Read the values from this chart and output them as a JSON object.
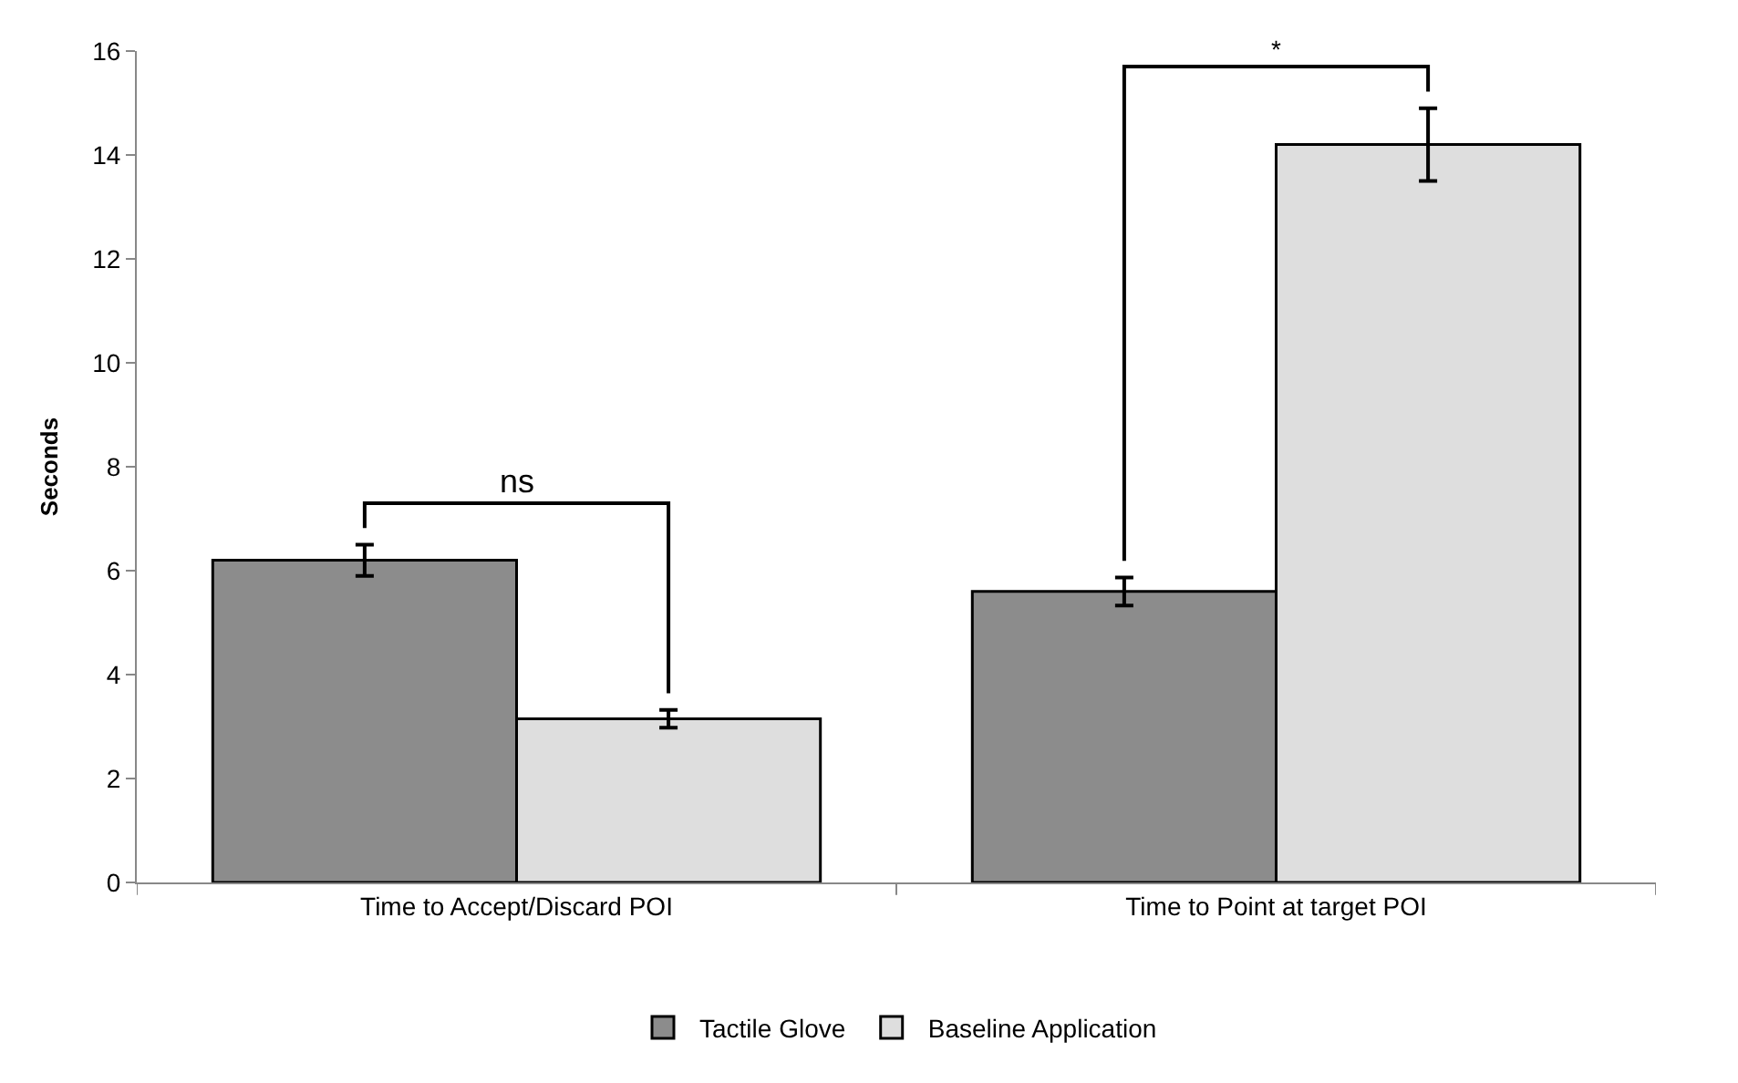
{
  "chart_data": {
    "type": "bar",
    "ylabel": "Seconds",
    "categories": [
      "Time to Accept/Discard POI",
      "Time to Point at target POI"
    ],
    "series": [
      {
        "name": "Tactile Glove",
        "color": "#8c8c8c",
        "values": [
          6.2,
          5.6
        ],
        "errors": [
          0.3,
          0.27
        ]
      },
      {
        "name": "Baseline Application",
        "color": "#dedede",
        "values": [
          3.15,
          14.2
        ],
        "errors": [
          0.17,
          0.7
        ]
      }
    ],
    "annotations": [
      "ns",
      "*"
    ],
    "ylim": [
      0,
      16
    ],
    "yticks": [
      0,
      2,
      4,
      6,
      8,
      10,
      12,
      14,
      16
    ],
    "grid": false,
    "legend": "bottom"
  }
}
